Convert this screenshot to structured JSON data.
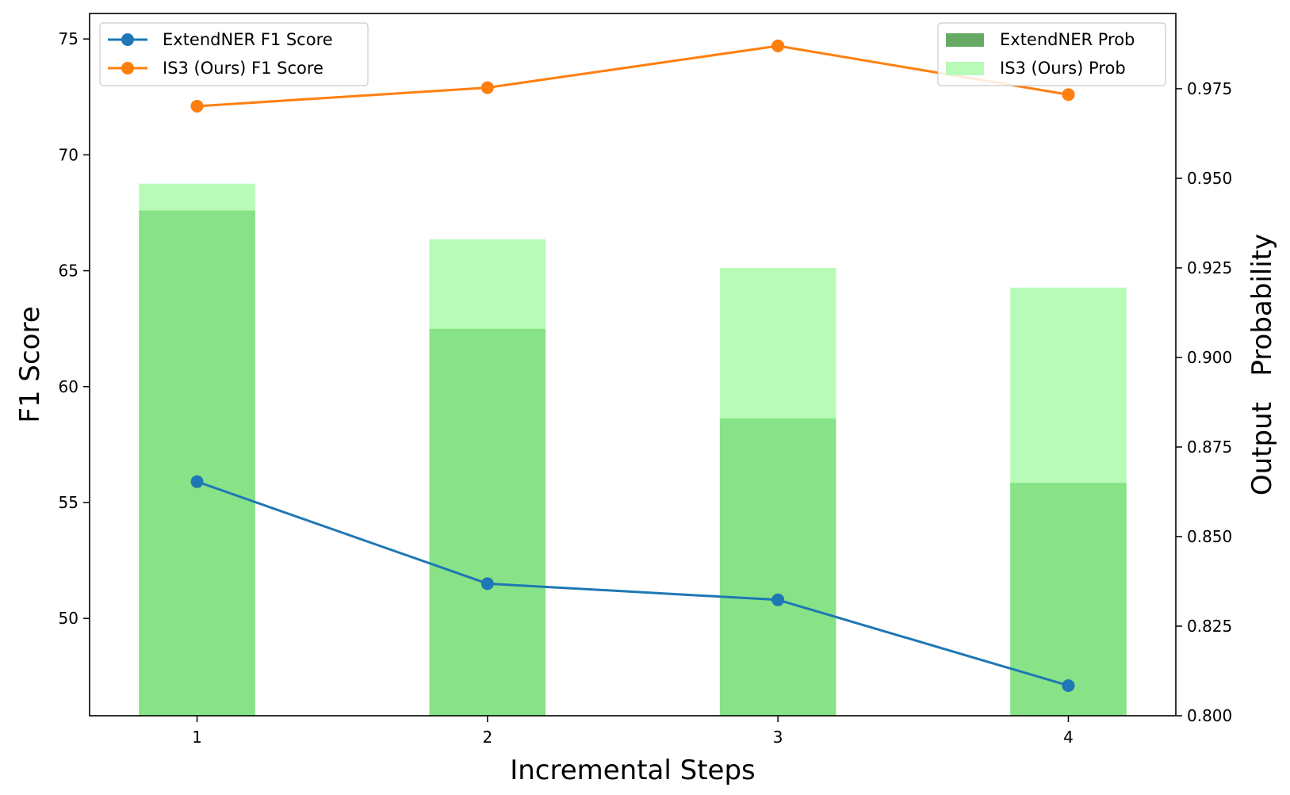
{
  "chart_data": {
    "type": "bar+line",
    "categories": [
      "1",
      "2",
      "3",
      "4"
    ],
    "xlabel": "Incremental Steps",
    "ylabel": "F1 Score",
    "ylabel_right": "Output   Probability",
    "ylim": [
      45.8,
      76.1
    ],
    "ylim_right": [
      0.8,
      0.996
    ],
    "yticks": [
      "50",
      "55",
      "60",
      "65",
      "70",
      "75"
    ],
    "yticks_right": [
      "0.800",
      "0.825",
      "0.850",
      "0.875",
      "0.900",
      "0.925",
      "0.950",
      "0.975"
    ],
    "grid": false,
    "lines": [
      {
        "name": "ExtendNER F1 Score",
        "color": "#1f77b4",
        "values": [
          55.9,
          51.5,
          50.8,
          47.1
        ]
      },
      {
        "name": "IS3 (Ours) F1 Score",
        "color": "#ff7f0e",
        "values": [
          72.1,
          72.9,
          74.7,
          72.6
        ]
      }
    ],
    "bars": [
      {
        "name": "ExtendNER Prob",
        "color": "#88e288",
        "legend_color": "#66aa66",
        "values": [
          0.941,
          0.908,
          0.883,
          0.865
        ]
      },
      {
        "name": "IS3 (Ours) Prob",
        "color": "#b8fbb8",
        "legend_color": "#b8fbb8",
        "values": [
          0.9485,
          0.933,
          0.925,
          0.9195
        ]
      }
    ],
    "legend_left": "top-left",
    "legend_right": "top-right"
  }
}
